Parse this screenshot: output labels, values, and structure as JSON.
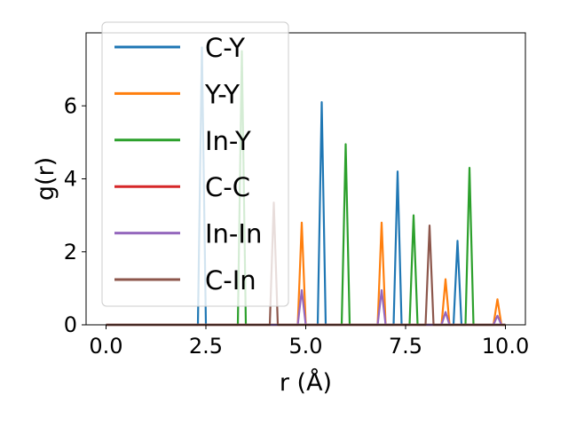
{
  "chart_data": {
    "type": "line",
    "xlabel": "r (Å)",
    "ylabel": "g(r)",
    "xlim": [
      -0.5,
      10.5
    ],
    "ylim": [
      0,
      8.0
    ],
    "xticks": [
      0.0,
      2.5,
      5.0,
      7.5,
      10.0
    ],
    "xtick_labels": [
      "0.0",
      "2.5",
      "5.0",
      "7.5",
      "10.0"
    ],
    "yticks": [
      0,
      2,
      4,
      6
    ],
    "ytick_labels": [
      "0",
      "2",
      "4",
      "6"
    ],
    "grid": false,
    "legend_position": "top-left",
    "peak_half_width": 0.1,
    "series": [
      {
        "name": "C-Y",
        "color": "#1f77b4",
        "peaks": [
          [
            2.4,
            7.6
          ],
          [
            5.4,
            6.1
          ],
          [
            7.3,
            4.2
          ],
          [
            8.8,
            2.3
          ]
        ]
      },
      {
        "name": "Y-Y",
        "color": "#ff7f0e",
        "peaks": [
          [
            4.9,
            2.8
          ],
          [
            6.9,
            2.8
          ],
          [
            8.5,
            1.25
          ],
          [
            9.8,
            0.7
          ]
        ]
      },
      {
        "name": "In-Y",
        "color": "#2ca02c",
        "peaks": [
          [
            3.4,
            7.5
          ],
          [
            6.0,
            4.95
          ],
          [
            7.7,
            3.0
          ],
          [
            9.1,
            4.3
          ]
        ]
      },
      {
        "name": "C-C",
        "color": "#d62728",
        "peaks": []
      },
      {
        "name": "In-In",
        "color": "#9467bd",
        "peaks": [
          [
            4.9,
            0.95
          ],
          [
            6.9,
            0.95
          ],
          [
            8.5,
            0.35
          ],
          [
            9.8,
            0.25
          ]
        ]
      },
      {
        "name": "C-In",
        "color": "#8c564b",
        "peaks": [
          [
            4.2,
            3.35
          ],
          [
            8.1,
            2.72
          ]
        ]
      }
    ]
  }
}
